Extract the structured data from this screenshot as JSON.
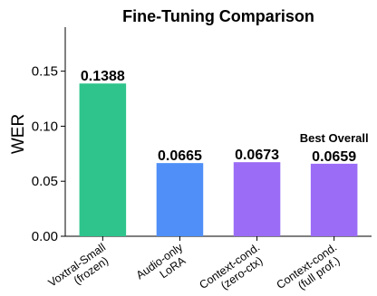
{
  "chart_data": {
    "type": "bar",
    "title": "Fine-Tuning Comparison",
    "ylabel": "WER",
    "xlabel": "",
    "ylim": [
      0,
      0.19
    ],
    "yticks": [
      "0.00",
      "0.05",
      "0.10",
      "0.15"
    ],
    "grid": false,
    "categories": [
      [
        "Voxtral-Small",
        "(frozen)"
      ],
      [
        "Audio-only",
        "LoRA"
      ],
      [
        "Context-cond.",
        "(zero-ctx)"
      ],
      [
        "Context-cond.",
        "(full prof.)"
      ]
    ],
    "values": [
      0.1388,
      0.0665,
      0.0673,
      0.0659
    ],
    "value_labels": [
      "0.1388",
      "0.0665",
      "0.0673",
      "0.0659"
    ],
    "colors": [
      "#2ec48c",
      "#4f8ff7",
      "#9b6cf5",
      "#9b6cf5"
    ],
    "annotation": {
      "text": "Best Overall",
      "bar_index": 3
    }
  }
}
